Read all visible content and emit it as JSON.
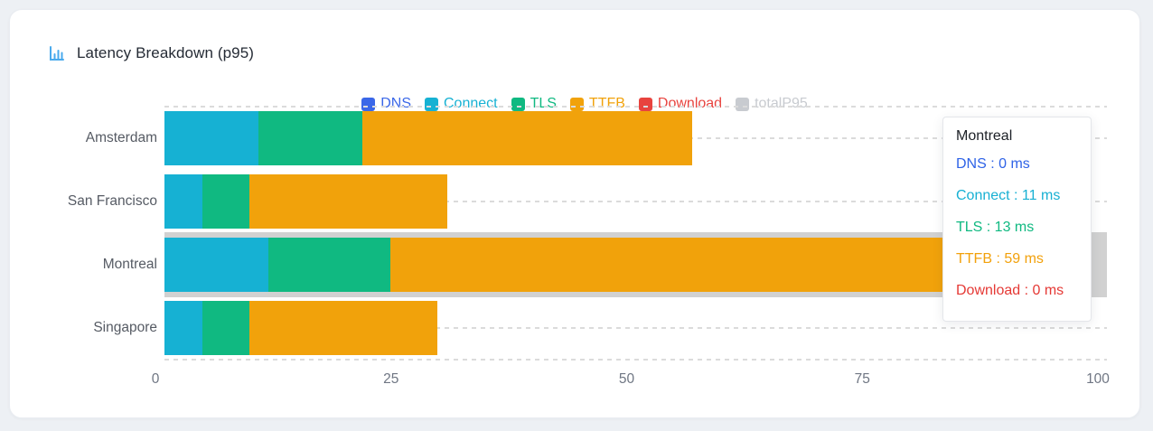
{
  "card": {
    "title": "Latency Breakdown (p95)",
    "title_icon": "bar-chart-icon",
    "title_icon_color": "#4aaaed"
  },
  "chart_data": {
    "type": "bar",
    "orientation": "horizontal",
    "stacked": true,
    "title": "Latency Breakdown (p95)",
    "unit": "ms",
    "categories": [
      "Amsterdam",
      "San Francisco",
      "Montreal",
      "Singapore"
    ],
    "series": [
      {
        "name": "DNS",
        "color": "#3a67e8",
        "deselected": false,
        "values": [
          0,
          0,
          0,
          0
        ]
      },
      {
        "name": "Connect",
        "color": "#16b1d3",
        "deselected": false,
        "values": [
          10,
          4,
          11,
          4
        ]
      },
      {
        "name": "TLS",
        "color": "#10b981",
        "deselected": false,
        "values": [
          11,
          5,
          13,
          5
        ]
      },
      {
        "name": "TTFB",
        "color": "#f1a20b",
        "deselected": false,
        "values": [
          35,
          21,
          59,
          20
        ]
      },
      {
        "name": "Download",
        "color": "#e8433e",
        "deselected": false,
        "values": [
          0,
          0,
          0,
          0
        ]
      },
      {
        "name": "totalP95",
        "color": "#c8cbd0",
        "deselected": true,
        "values": []
      }
    ],
    "totals": [
      56,
      30,
      83,
      29
    ],
    "xlim": [
      0,
      100
    ],
    "x_ticks": [
      "0",
      "25",
      "50",
      "75",
      "100"
    ],
    "grid": "dashed-horizontal",
    "legend_position": "top-center",
    "highlight": {
      "category": "Montreal",
      "band_color": "#d1d1d1"
    }
  },
  "tooltip": {
    "title": "Montreal",
    "separator": " : ",
    "items": [
      {
        "label": "DNS",
        "value": "0 ms",
        "color": "#2f63e7"
      },
      {
        "label": "Connect",
        "value": "11 ms",
        "color": "#17b0d3"
      },
      {
        "label": "TLS",
        "value": "13 ms",
        "color": "#10b981"
      },
      {
        "label": "TTFB",
        "value": "59 ms",
        "color": "#f2a10c"
      },
      {
        "label": "Download",
        "value": "0 ms",
        "color": "#e53935"
      }
    ]
  }
}
